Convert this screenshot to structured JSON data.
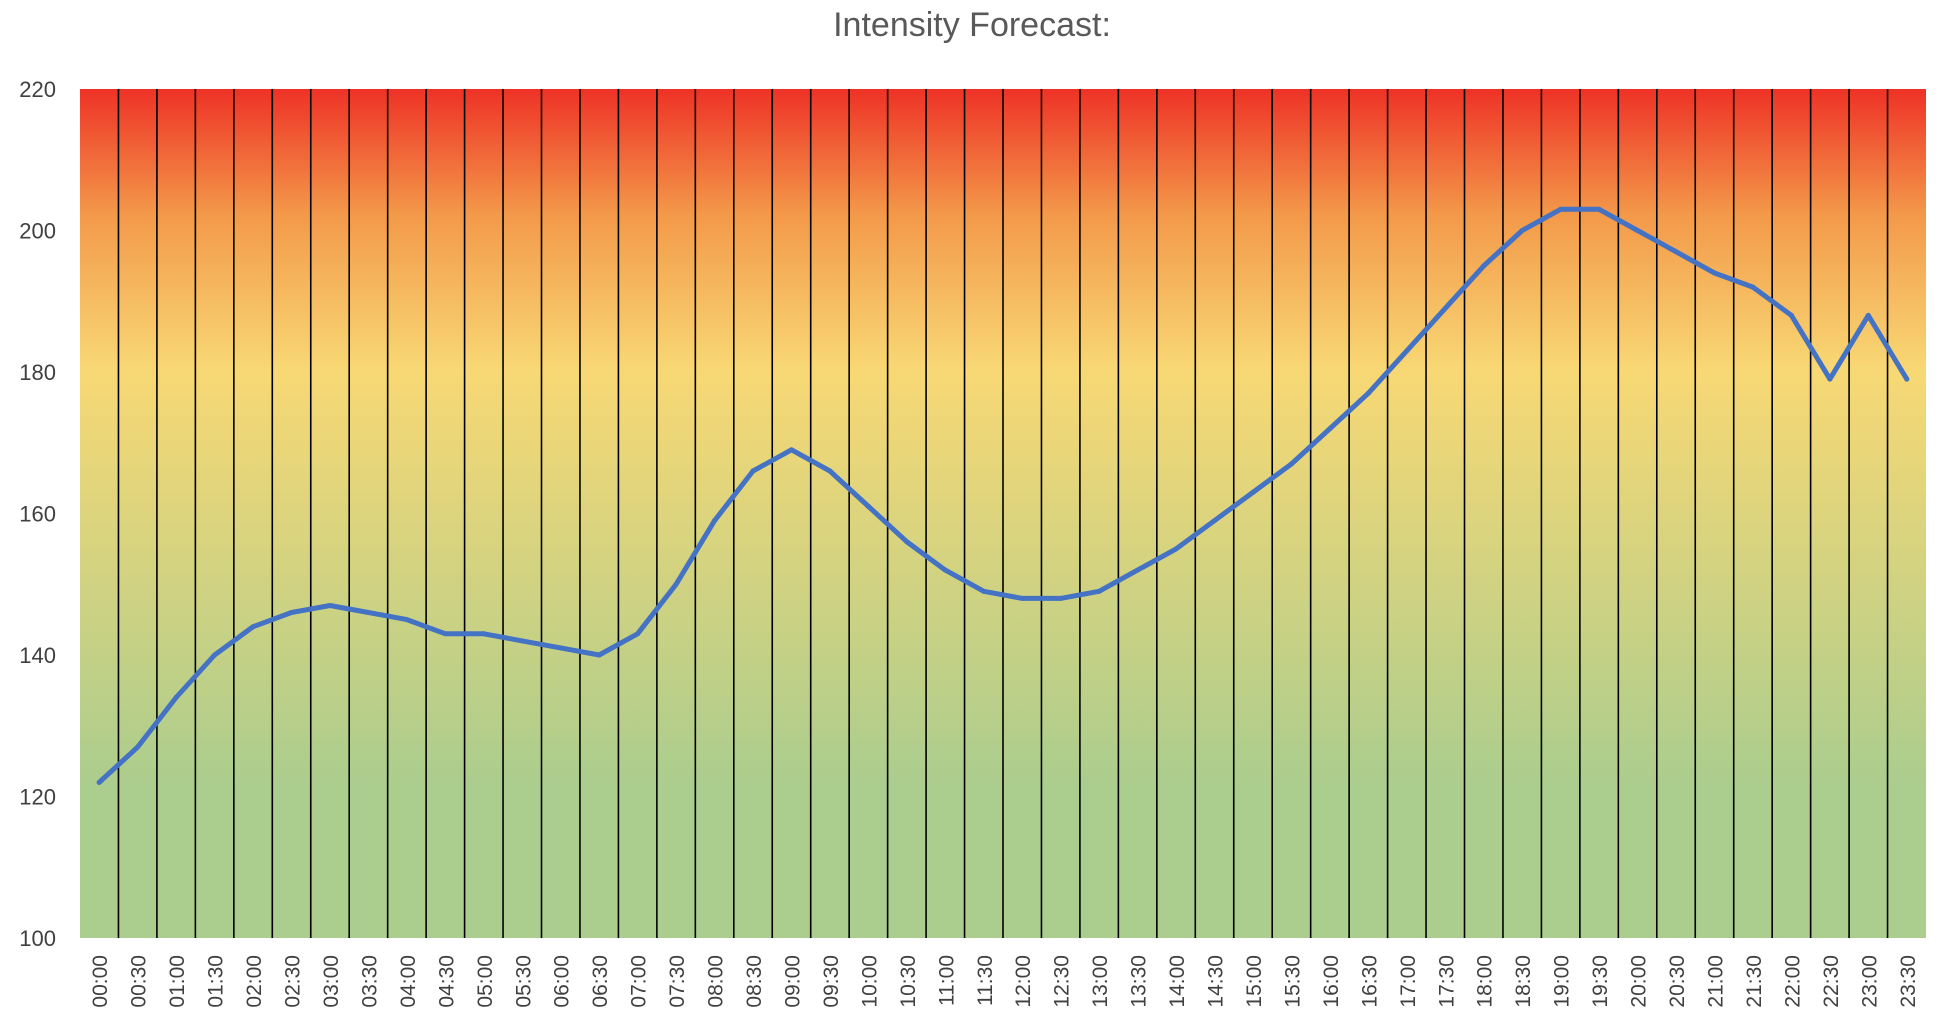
{
  "chart_data": {
    "type": "line",
    "title": "Intensity Forecast:",
    "xlabel": "",
    "ylabel": "",
    "ylim": [
      100,
      220
    ],
    "yticks": [
      "100",
      "120",
      "140",
      "160",
      "180",
      "200",
      "220"
    ],
    "grid": "vertical lines",
    "legend": "none",
    "categories": [
      "00:00",
      "00:30",
      "01:00",
      "01:30",
      "02:00",
      "02:30",
      "03:00",
      "03:30",
      "04:00",
      "04:30",
      "05:00",
      "05:30",
      "06:00",
      "06:30",
      "07:00",
      "07:30",
      "08:00",
      "08:30",
      "09:00",
      "09:30",
      "10:00",
      "10:30",
      "11:00",
      "11:30",
      "12:00",
      "12:30",
      "13:00",
      "13:30",
      "14:00",
      "14:30",
      "15:00",
      "15:30",
      "16:00",
      "16:30",
      "17:00",
      "17:30",
      "18:00",
      "18:30",
      "19:00",
      "19:30",
      "20:00",
      "20:30",
      "21:00",
      "21:30",
      "22:00",
      "22:30",
      "23:00",
      "23:30"
    ],
    "values": [
      122,
      127,
      134,
      140,
      144,
      146,
      147,
      146,
      145,
      143,
      143,
      142,
      141,
      140,
      143,
      150,
      159,
      166,
      169,
      166,
      161,
      156,
      152,
      149,
      148,
      148,
      149,
      152,
      155,
      159,
      163,
      167,
      172,
      177,
      183,
      189,
      195,
      200,
      203,
      203,
      200,
      197,
      194,
      192,
      188,
      179,
      188,
      179
    ],
    "colors": {
      "line": "#4472C4",
      "background_top": "#EE3226",
      "background_mid": "#F8D874",
      "background_bottom": "#ABCD8E",
      "vertical_lines": "#000000"
    }
  }
}
